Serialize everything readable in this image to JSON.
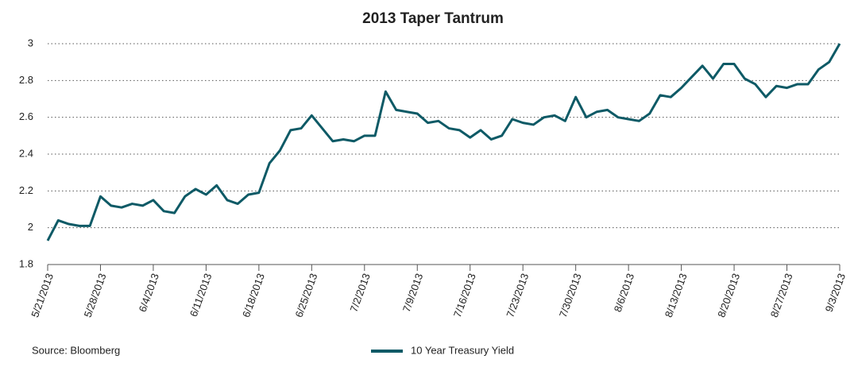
{
  "chart_data": {
    "type": "line",
    "title": "2013 Taper Tantrum",
    "source": "Source: Bloomberg",
    "categories": [
      "5/21/2013",
      null,
      null,
      null,
      null,
      "5/28/2013",
      null,
      null,
      null,
      null,
      "6/4/2013",
      null,
      null,
      null,
      null,
      "6/11/2013",
      null,
      null,
      null,
      null,
      "6/18/2013",
      null,
      null,
      null,
      null,
      "6/25/2013",
      null,
      null,
      null,
      null,
      "7/2/2013",
      null,
      null,
      null,
      null,
      "7/9/2013",
      null,
      null,
      null,
      null,
      "7/16/2013",
      null,
      null,
      null,
      null,
      "7/23/2013",
      null,
      null,
      null,
      null,
      "7/30/2013",
      null,
      null,
      null,
      null,
      "8/6/2013",
      null,
      null,
      null,
      null,
      "8/13/2013",
      null,
      null,
      null,
      null,
      "8/20/2013",
      null,
      null,
      null,
      null,
      "8/27/2013",
      null,
      null,
      null,
      null,
      "9/3/2013"
    ],
    "series": [
      {
        "name": "10 Year Treasury Yield",
        "color": "#0e5a66",
        "values": [
          1.93,
          2.04,
          2.02,
          2.01,
          2.01,
          2.17,
          2.12,
          2.11,
          2.13,
          2.12,
          2.15,
          2.09,
          2.08,
          2.17,
          2.21,
          2.18,
          2.23,
          2.15,
          2.13,
          2.18,
          2.19,
          2.35,
          2.42,
          2.53,
          2.54,
          2.61,
          2.54,
          2.47,
          2.48,
          2.47,
          2.5,
          2.5,
          2.74,
          2.64,
          2.63,
          2.62,
          2.57,
          2.58,
          2.54,
          2.53,
          2.49,
          2.53,
          2.48,
          2.5,
          2.59,
          2.57,
          2.56,
          2.6,
          2.61,
          2.58,
          2.71,
          2.6,
          2.63,
          2.64,
          2.6,
          2.59,
          2.58,
          2.62,
          2.72,
          2.71,
          2.76,
          2.82,
          2.88,
          2.81,
          2.89,
          2.89,
          2.81,
          2.78,
          2.71,
          2.77,
          2.76,
          2.78,
          2.78,
          2.86,
          2.9,
          3.0
        ]
      }
    ],
    "ylim": [
      1.8,
      3
    ],
    "yticks": [
      1.8,
      2,
      2.2,
      2.4,
      2.6,
      2.8,
      3
    ],
    "grid": true,
    "legend": "bottom"
  }
}
